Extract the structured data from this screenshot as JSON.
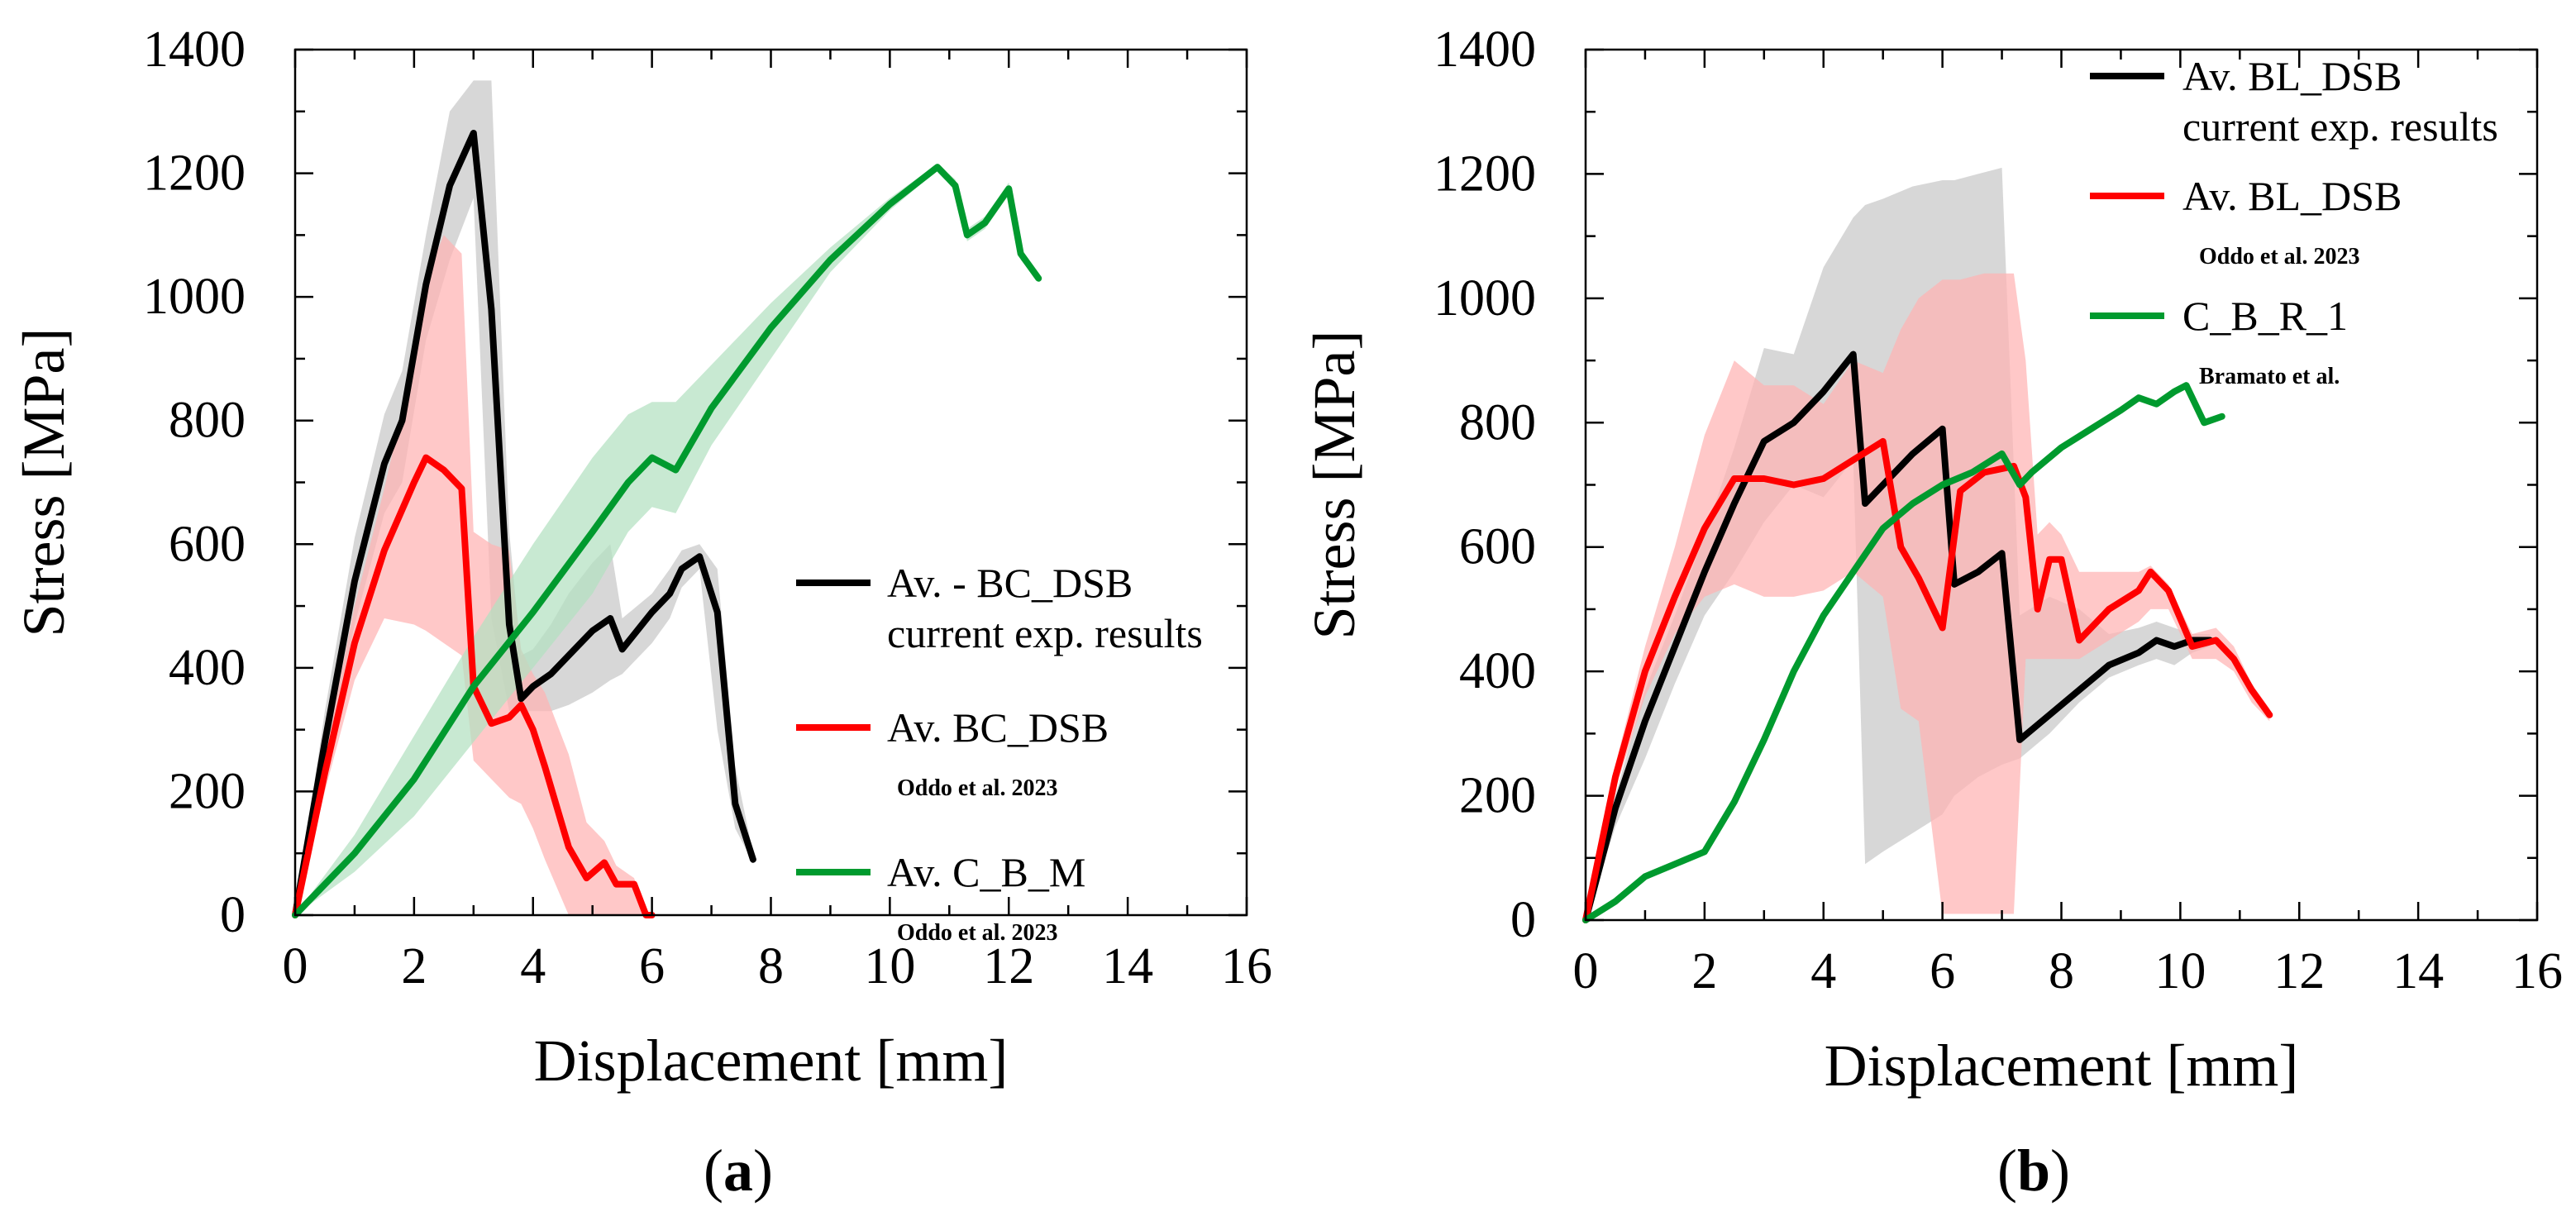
{
  "chart_data": [
    {
      "type": "line",
      "panel_label": "a",
      "xlabel": "Displacement  [mm]",
      "ylabel": "Stress [MPa]",
      "xlim": [
        0,
        16
      ],
      "ylim": [
        0,
        1400
      ],
      "xticks": [
        0,
        2,
        4,
        6,
        8,
        10,
        12,
        14,
        16
      ],
      "yticks": [
        0,
        200,
        400,
        600,
        800,
        1000,
        1200,
        1400
      ],
      "legend_position": "right-middle",
      "series": [
        {
          "name": "Av. - BC_DSB",
          "sub": "current exp. results",
          "color": "#000000",
          "band_color": "#c8c8c8",
          "x": [
            0,
            0.5,
            1.0,
            1.5,
            1.8,
            2.2,
            2.6,
            3.0,
            3.3,
            3.6,
            3.8,
            4.0,
            4.3,
            4.6,
            5.0,
            5.3,
            5.5,
            6.0,
            6.3,
            6.5,
            6.8,
            7.1,
            7.4,
            7.7
          ],
          "y": [
            0,
            280,
            540,
            730,
            800,
            1020,
            1180,
            1265,
            980,
            470,
            350,
            370,
            390,
            420,
            460,
            480,
            430,
            490,
            520,
            560,
            580,
            490,
            180,
            90
          ],
          "band_upper": [
            0,
            330,
            610,
            810,
            880,
            1100,
            1300,
            1350,
            1350,
            620,
            420,
            430,
            470,
            520,
            570,
            600,
            480,
            520,
            560,
            590,
            600,
            560,
            240,
            100
          ],
          "band_lower": [
            0,
            240,
            470,
            650,
            700,
            930,
            1060,
            1160,
            480,
            330,
            330,
            330,
            330,
            340,
            360,
            380,
            390,
            440,
            480,
            530,
            560,
            300,
            140,
            85
          ]
        },
        {
          "name": "Av. BC_DSB",
          "sub": "Oddo et al. 2023",
          "color": "#ff0000",
          "band_color": "#ffb3b3",
          "x": [
            0,
            0.5,
            1.0,
            1.5,
            2.0,
            2.2,
            2.5,
            2.8,
            3.0,
            3.3,
            3.6,
            3.8,
            4.0,
            4.2,
            4.6,
            4.9,
            5.2,
            5.4,
            5.7,
            5.9,
            6.0
          ],
          "y": [
            0,
            230,
            440,
            590,
            700,
            740,
            720,
            690,
            370,
            310,
            320,
            340,
            300,
            240,
            110,
            60,
            85,
            50,
            50,
            0,
            0
          ],
          "band_upper": [
            0,
            260,
            500,
            690,
            900,
            1030,
            1100,
            1070,
            620,
            600,
            590,
            430,
            390,
            360,
            260,
            150,
            120,
            80,
            60,
            0,
            0
          ],
          "band_lower": [
            0,
            200,
            380,
            480,
            470,
            460,
            440,
            420,
            250,
            220,
            190,
            180,
            140,
            90,
            0,
            0,
            0,
            0,
            0,
            0,
            0
          ]
        },
        {
          "name": "Av. C_B_M",
          "sub": "Oddo et al. 2023",
          "color": "#009a2e",
          "band_color": "#b3e0c0",
          "x": [
            0,
            1,
            2,
            3,
            4,
            5,
            5.6,
            6,
            6.4,
            7,
            8,
            9,
            10,
            10.8,
            11.1,
            11.3,
            11.6,
            12.0,
            12.2,
            12.5
          ],
          "y": [
            0,
            100,
            220,
            370,
            490,
            620,
            700,
            740,
            720,
            820,
            950,
            1060,
            1150,
            1210,
            1180,
            1100,
            1120,
            1175,
            1070,
            1030
          ],
          "band_upper": [
            0,
            130,
            290,
            450,
            600,
            740,
            810,
            830,
            830,
            890,
            990,
            1080,
            1160,
            1215,
            1190,
            1110,
            1130,
            1185,
            1080,
            1035
          ],
          "band_lower": [
            0,
            70,
            160,
            280,
            400,
            520,
            620,
            660,
            650,
            760,
            900,
            1040,
            1140,
            1205,
            1170,
            1090,
            1110,
            1165,
            1060,
            1025
          ]
        }
      ]
    },
    {
      "type": "line",
      "panel_label": "b",
      "xlabel": "Displacement  [mm]",
      "ylabel": "Stress [MPa]",
      "xlim": [
        0,
        16
      ],
      "ylim": [
        0,
        1400
      ],
      "xticks": [
        0,
        2,
        4,
        6,
        8,
        10,
        12,
        14,
        16
      ],
      "yticks": [
        0,
        200,
        400,
        600,
        800,
        1000,
        1200,
        1400
      ],
      "legend_position": "top-right",
      "series": [
        {
          "name": "Av. BL_DSB",
          "sub": "current exp. results",
          "color": "#000000",
          "band_color": "#c8c8c8",
          "x": [
            0,
            0.5,
            1.0,
            1.5,
            2.0,
            2.5,
            3.0,
            3.5,
            4.0,
            4.5,
            4.7,
            5.0,
            5.5,
            6.0,
            6.2,
            6.6,
            7.0,
            7.3,
            7.8,
            8.3,
            8.8,
            9.3,
            9.6,
            9.9,
            10.2,
            10.5
          ],
          "y": [
            0,
            180,
            320,
            440,
            560,
            670,
            770,
            800,
            850,
            910,
            670,
            700,
            750,
            790,
            540,
            560,
            590,
            290,
            330,
            370,
            410,
            430,
            450,
            440,
            450,
            450
          ],
          "band_upper": [
            0,
            200,
            370,
            490,
            620,
            760,
            920,
            910,
            1050,
            1130,
            1150,
            1160,
            1180,
            1190,
            1190,
            1200,
            1210,
            490,
            520,
            500,
            460,
            470,
            480,
            470,
            460,
            460
          ],
          "band_lower": [
            0,
            150,
            260,
            380,
            490,
            560,
            640,
            700,
            680,
            740,
            90,
            110,
            140,
            170,
            200,
            230,
            250,
            260,
            300,
            350,
            390,
            410,
            420,
            410,
            430,
            440
          ]
        },
        {
          "name": "Av. BL_DSB",
          "sub": "Oddo et al. 2023",
          "color": "#ff0000",
          "band_color": "#ffb3b3",
          "x": [
            0,
            0.5,
            1.0,
            1.5,
            2.0,
            2.5,
            3.0,
            3.5,
            4.0,
            4.5,
            5.0,
            5.3,
            5.6,
            6.0,
            6.3,
            6.7,
            7.2,
            7.4,
            7.6,
            7.8,
            8.0,
            8.3,
            8.8,
            9.3,
            9.5,
            9.8,
            10.2,
            10.6,
            10.9,
            11.2,
            11.5
          ],
          "y": [
            0,
            230,
            400,
            520,
            630,
            710,
            710,
            700,
            710,
            740,
            770,
            600,
            550,
            470,
            690,
            720,
            730,
            680,
            500,
            580,
            580,
            450,
            500,
            530,
            560,
            530,
            440,
            450,
            420,
            370,
            330
          ],
          "band_upper": [
            0,
            250,
            440,
            600,
            780,
            900,
            860,
            860,
            830,
            900,
            880,
            950,
            1000,
            1030,
            1030,
            1040,
            1040,
            900,
            620,
            640,
            620,
            560,
            560,
            560,
            570,
            540,
            460,
            470,
            440,
            380,
            340
          ],
          "band_lower": [
            0,
            210,
            360,
            460,
            520,
            540,
            520,
            520,
            530,
            560,
            520,
            340,
            320,
            10,
            10,
            10,
            10,
            420,
            420,
            420,
            420,
            420,
            450,
            480,
            500,
            500,
            420,
            420,
            400,
            350,
            320
          ]
        },
        {
          "name": "C_B_R_1",
          "sub": "Bramato et al.",
          "color": "#009a2e",
          "band_color": "#b3e0c0",
          "x": [
            0,
            0.5,
            1.0,
            1.5,
            2.0,
            2.5,
            3.0,
            3.5,
            4.0,
            4.5,
            5.0,
            5.5,
            6.0,
            6.5,
            7.0,
            7.3,
            7.5,
            8.0,
            8.5,
            9.0,
            9.3,
            9.6,
            9.9,
            10.1,
            10.4,
            10.7
          ],
          "y": [
            0,
            30,
            70,
            90,
            110,
            190,
            290,
            400,
            490,
            560,
            630,
            670,
            700,
            720,
            750,
            700,
            720,
            760,
            790,
            820,
            840,
            830,
            850,
            860,
            800,
            810
          ]
        }
      ]
    }
  ]
}
